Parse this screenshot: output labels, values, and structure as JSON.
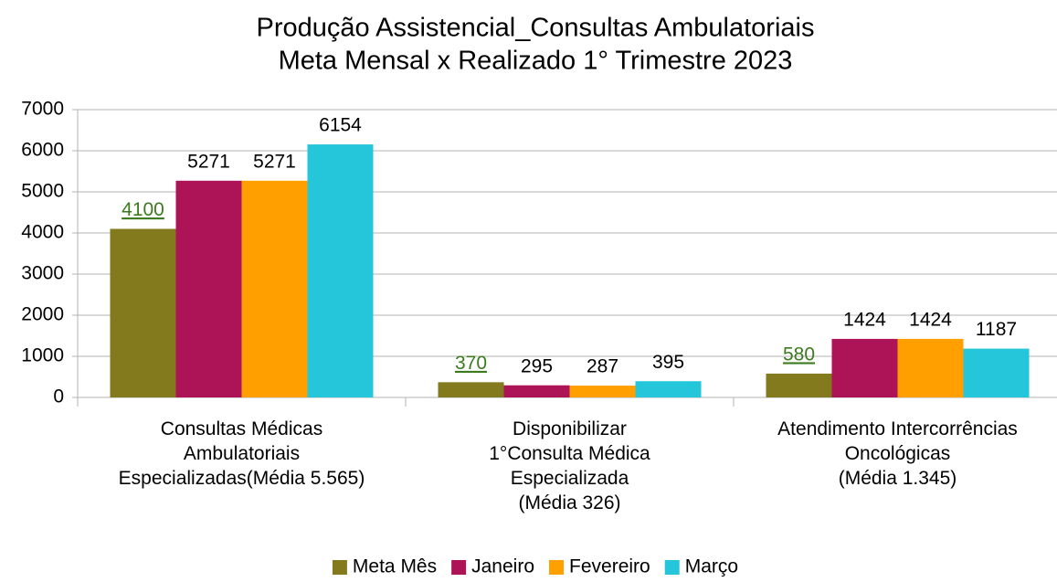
{
  "chart_data": {
    "type": "bar",
    "title": "Produção Assistencial_Consultas Ambulatoriais",
    "subtitle": "Meta Mensal x Realizado 1° Trimestre 2023",
    "categories": [
      [
        "Consultas Médicas",
        "Ambulatoriais",
        "Especializadas(Média 5.565)"
      ],
      [
        "Disponibilizar",
        "1°Consulta Médica",
        "Especializada",
        "(Média 326)"
      ],
      [
        "Atendimento Intercorrências",
        "Oncológicas",
        "(Média 1.345)"
      ]
    ],
    "series": [
      {
        "name": "Meta Mês",
        "color": "#837a1e",
        "label_color": "#3c7a1e",
        "label_underline": true,
        "values": [
          4100,
          370,
          580
        ]
      },
      {
        "name": "Janeiro",
        "color": "#ad1457",
        "label_color": "#000000",
        "label_underline": false,
        "values": [
          5271,
          295,
          1424
        ]
      },
      {
        "name": "Fevereiro",
        "color": "#ff9f00",
        "label_color": "#000000",
        "label_underline": false,
        "values": [
          5271,
          287,
          1424
        ]
      },
      {
        "name": "Março",
        "color": "#26c6da",
        "label_color": "#000000",
        "label_underline": false,
        "values": [
          6154,
          395,
          1187
        ]
      }
    ],
    "ylim": [
      0,
      7000
    ],
    "yticks": [
      0,
      1000,
      2000,
      3000,
      4000,
      5000,
      6000,
      7000
    ],
    "grid": true,
    "legend": "bottom"
  }
}
